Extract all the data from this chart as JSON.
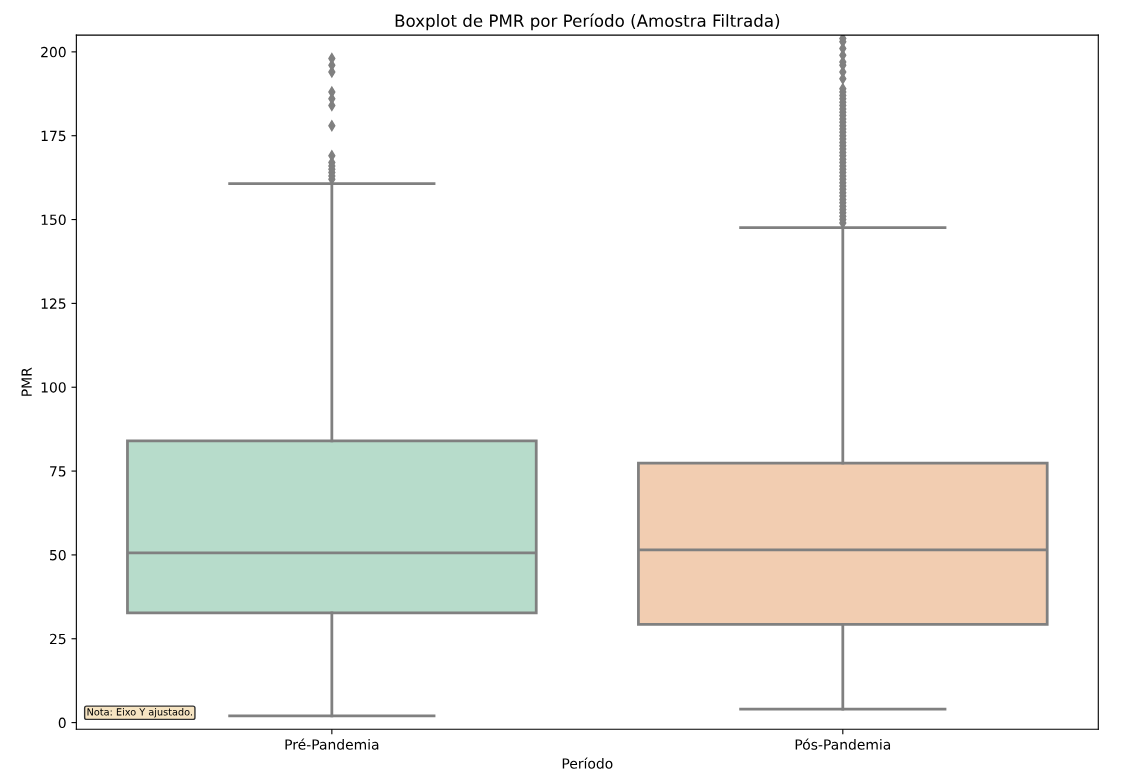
{
  "chart_data": {
    "type": "box",
    "title": "Boxplot de PMR por Período (Amostra Filtrada)",
    "xlabel": "Período",
    "ylabel": "PMR",
    "categories": [
      "Pré-Pandemia",
      "Pós-Pandemia"
    ],
    "colors": [
      "#b7dccb",
      "#f2cdb1"
    ],
    "boxes": [
      {
        "low": 2,
        "q1": 32.7,
        "median": 50.6,
        "q3": 84,
        "high": 160.7,
        "outliers": [
          162,
          163,
          164,
          165,
          166,
          167,
          169,
          178,
          184,
          186,
          188,
          194,
          196,
          198
        ]
      },
      {
        "low": 4,
        "q1": 29.3,
        "median": 51.5,
        "q3": 77.4,
        "high": 147.6,
        "outliers": [
          149,
          150,
          151,
          152,
          153,
          154,
          155,
          156,
          157,
          158,
          159,
          160,
          161,
          162,
          163,
          164,
          165,
          166,
          167,
          168,
          169,
          170,
          171,
          172,
          173,
          174,
          175,
          176,
          177,
          178,
          179,
          180,
          181,
          182,
          183,
          184,
          185,
          186,
          187,
          188,
          189,
          192,
          194,
          196,
          197,
          199,
          201,
          203,
          204
        ]
      }
    ],
    "ylim": [
      -2,
      205
    ],
    "yticks": [
      0,
      25,
      50,
      75,
      100,
      125,
      150,
      175,
      200
    ],
    "marker": "diamond",
    "grid": false,
    "annotations": [
      "Nota: Eixo Y ajustado."
    ]
  }
}
